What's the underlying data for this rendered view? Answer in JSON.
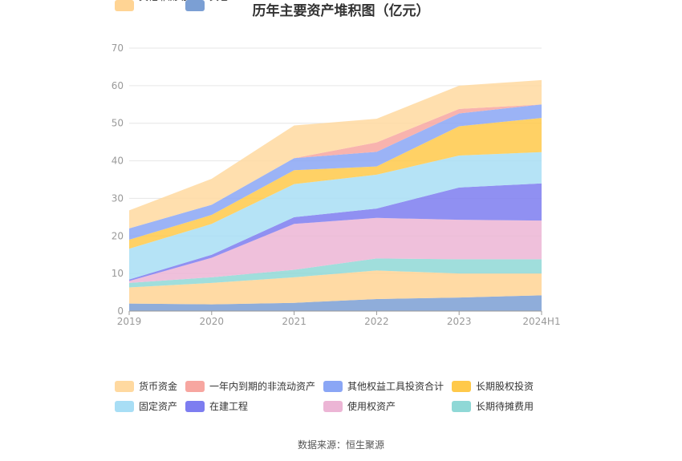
{
  "chart_data": {
    "type": "area",
    "stacked": true,
    "title": "历年主要资产堆积图（亿元）",
    "source": "数据来源：恒生聚源",
    "categories": [
      "2019",
      "2020",
      "2021",
      "2022",
      "2023",
      "2024H1"
    ],
    "ylim": [
      0,
      70
    ],
    "yticks": [
      0,
      10,
      20,
      30,
      40,
      50,
      60,
      70
    ],
    "grid": true,
    "legend_position": "bottom",
    "series": [
      {
        "name": "其它",
        "color": "#7b9fd4",
        "values": [
          2.0,
          1.8,
          2.2,
          3.2,
          3.6,
          4.2
        ]
      },
      {
        "name": "其他非流动资产",
        "color": "#ffd494",
        "values": [
          4.3,
          5.7,
          6.8,
          7.6,
          6.4,
          5.8
        ]
      },
      {
        "name": "长期待摊费用",
        "color": "#8fd8d6",
        "values": [
          1.2,
          1.5,
          2.0,
          3.2,
          3.8,
          3.8
        ]
      },
      {
        "name": "使用权资产",
        "color": "#ecb5d5",
        "values": [
          0.5,
          5.2,
          12.2,
          10.8,
          10.5,
          10.3
        ]
      },
      {
        "name": "在建工程",
        "color": "#7d7df0",
        "values": [
          0.4,
          0.8,
          1.8,
          2.5,
          8.6,
          9.9
        ]
      },
      {
        "name": "固定资产",
        "color": "#a8def5",
        "values": [
          8.2,
          8.2,
          8.8,
          9.0,
          8.5,
          8.3
        ]
      },
      {
        "name": "长期股权投资",
        "color": "#ffc94a",
        "values": [
          2.4,
          2.4,
          3.7,
          2.2,
          7.8,
          9.1
        ]
      },
      {
        "name": "其他权益工具投资合计",
        "color": "#8aa6f5",
        "values": [
          3.0,
          2.7,
          3.2,
          3.9,
          3.4,
          3.6
        ]
      },
      {
        "name": "一年内到期的非流动资产",
        "color": "#f7a6a0",
        "values": [
          0,
          0,
          0,
          2.5,
          1.2,
          0
        ]
      },
      {
        "name": "货币资金",
        "color": "#ffd9a0",
        "values": [
          4.8,
          6.9,
          8.7,
          6.3,
          6.2,
          6.5
        ]
      }
    ],
    "legend_order": [
      "货币资金",
      "一年内到期的非流动资产",
      "其他权益工具投资合计",
      "长期股权投资",
      "固定资产",
      "在建工程",
      "使用权资产",
      "长期待摊费用",
      "其他非流动资产",
      "其它"
    ]
  }
}
